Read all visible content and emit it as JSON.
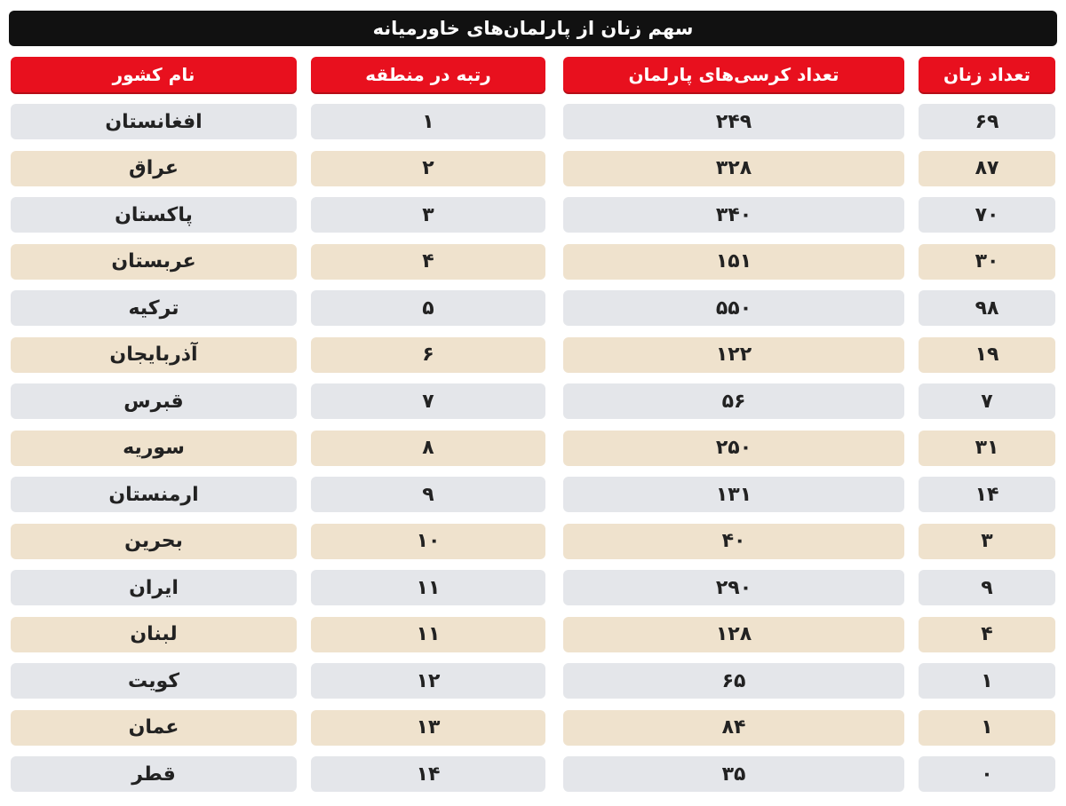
{
  "title": "سهم زنان از پارلمان‌های خاورمیانه",
  "colors": {
    "header": "#e8101e",
    "title_bar": "#111111",
    "row_odd": "#e4e6ea",
    "row_even": "#efe2cd"
  },
  "chart_data": {
    "type": "table",
    "title": "سهم زنان از پارلمان‌های خاورمیانه",
    "columns": [
      "نام کشور",
      "رتبه در منطقه",
      "تعداد کرسی‌های پارلمان",
      "تعداد زنان"
    ],
    "rows": [
      [
        "افغانستان",
        "۱",
        "۲۴۹",
        "۶۹"
      ],
      [
        "عراق",
        "۲",
        "۳۲۸",
        "۸۷"
      ],
      [
        "پاکستان",
        "۳",
        "۳۴۰",
        "۷۰"
      ],
      [
        "عربستان",
        "۴",
        "۱۵۱",
        "۳۰"
      ],
      [
        "ترکیه",
        "۵",
        "۵۵۰",
        "۹۸"
      ],
      [
        "آذربایجان",
        "۶",
        "۱۲۲",
        "۱۹"
      ],
      [
        "قبرس",
        "۷",
        "۵۶",
        "۷"
      ],
      [
        "سوریه",
        "۸",
        "۲۵۰",
        "۳۱"
      ],
      [
        "ارمنستان",
        "۹",
        "۱۳۱",
        "۱۴"
      ],
      [
        "بحرین",
        "۱۰",
        "۴۰",
        "۳"
      ],
      [
        "ایران",
        "۱۱",
        "۲۹۰",
        "۹"
      ],
      [
        "لبنان",
        "۱۱",
        "۱۲۸",
        "۴"
      ],
      [
        "کویت",
        "۱۲",
        "۶۵",
        "۱"
      ],
      [
        "عمان",
        "۱۳",
        "۸۴",
        "۱"
      ],
      [
        "قطر",
        "۱۴",
        "۳۵",
        "۰"
      ]
    ]
  }
}
